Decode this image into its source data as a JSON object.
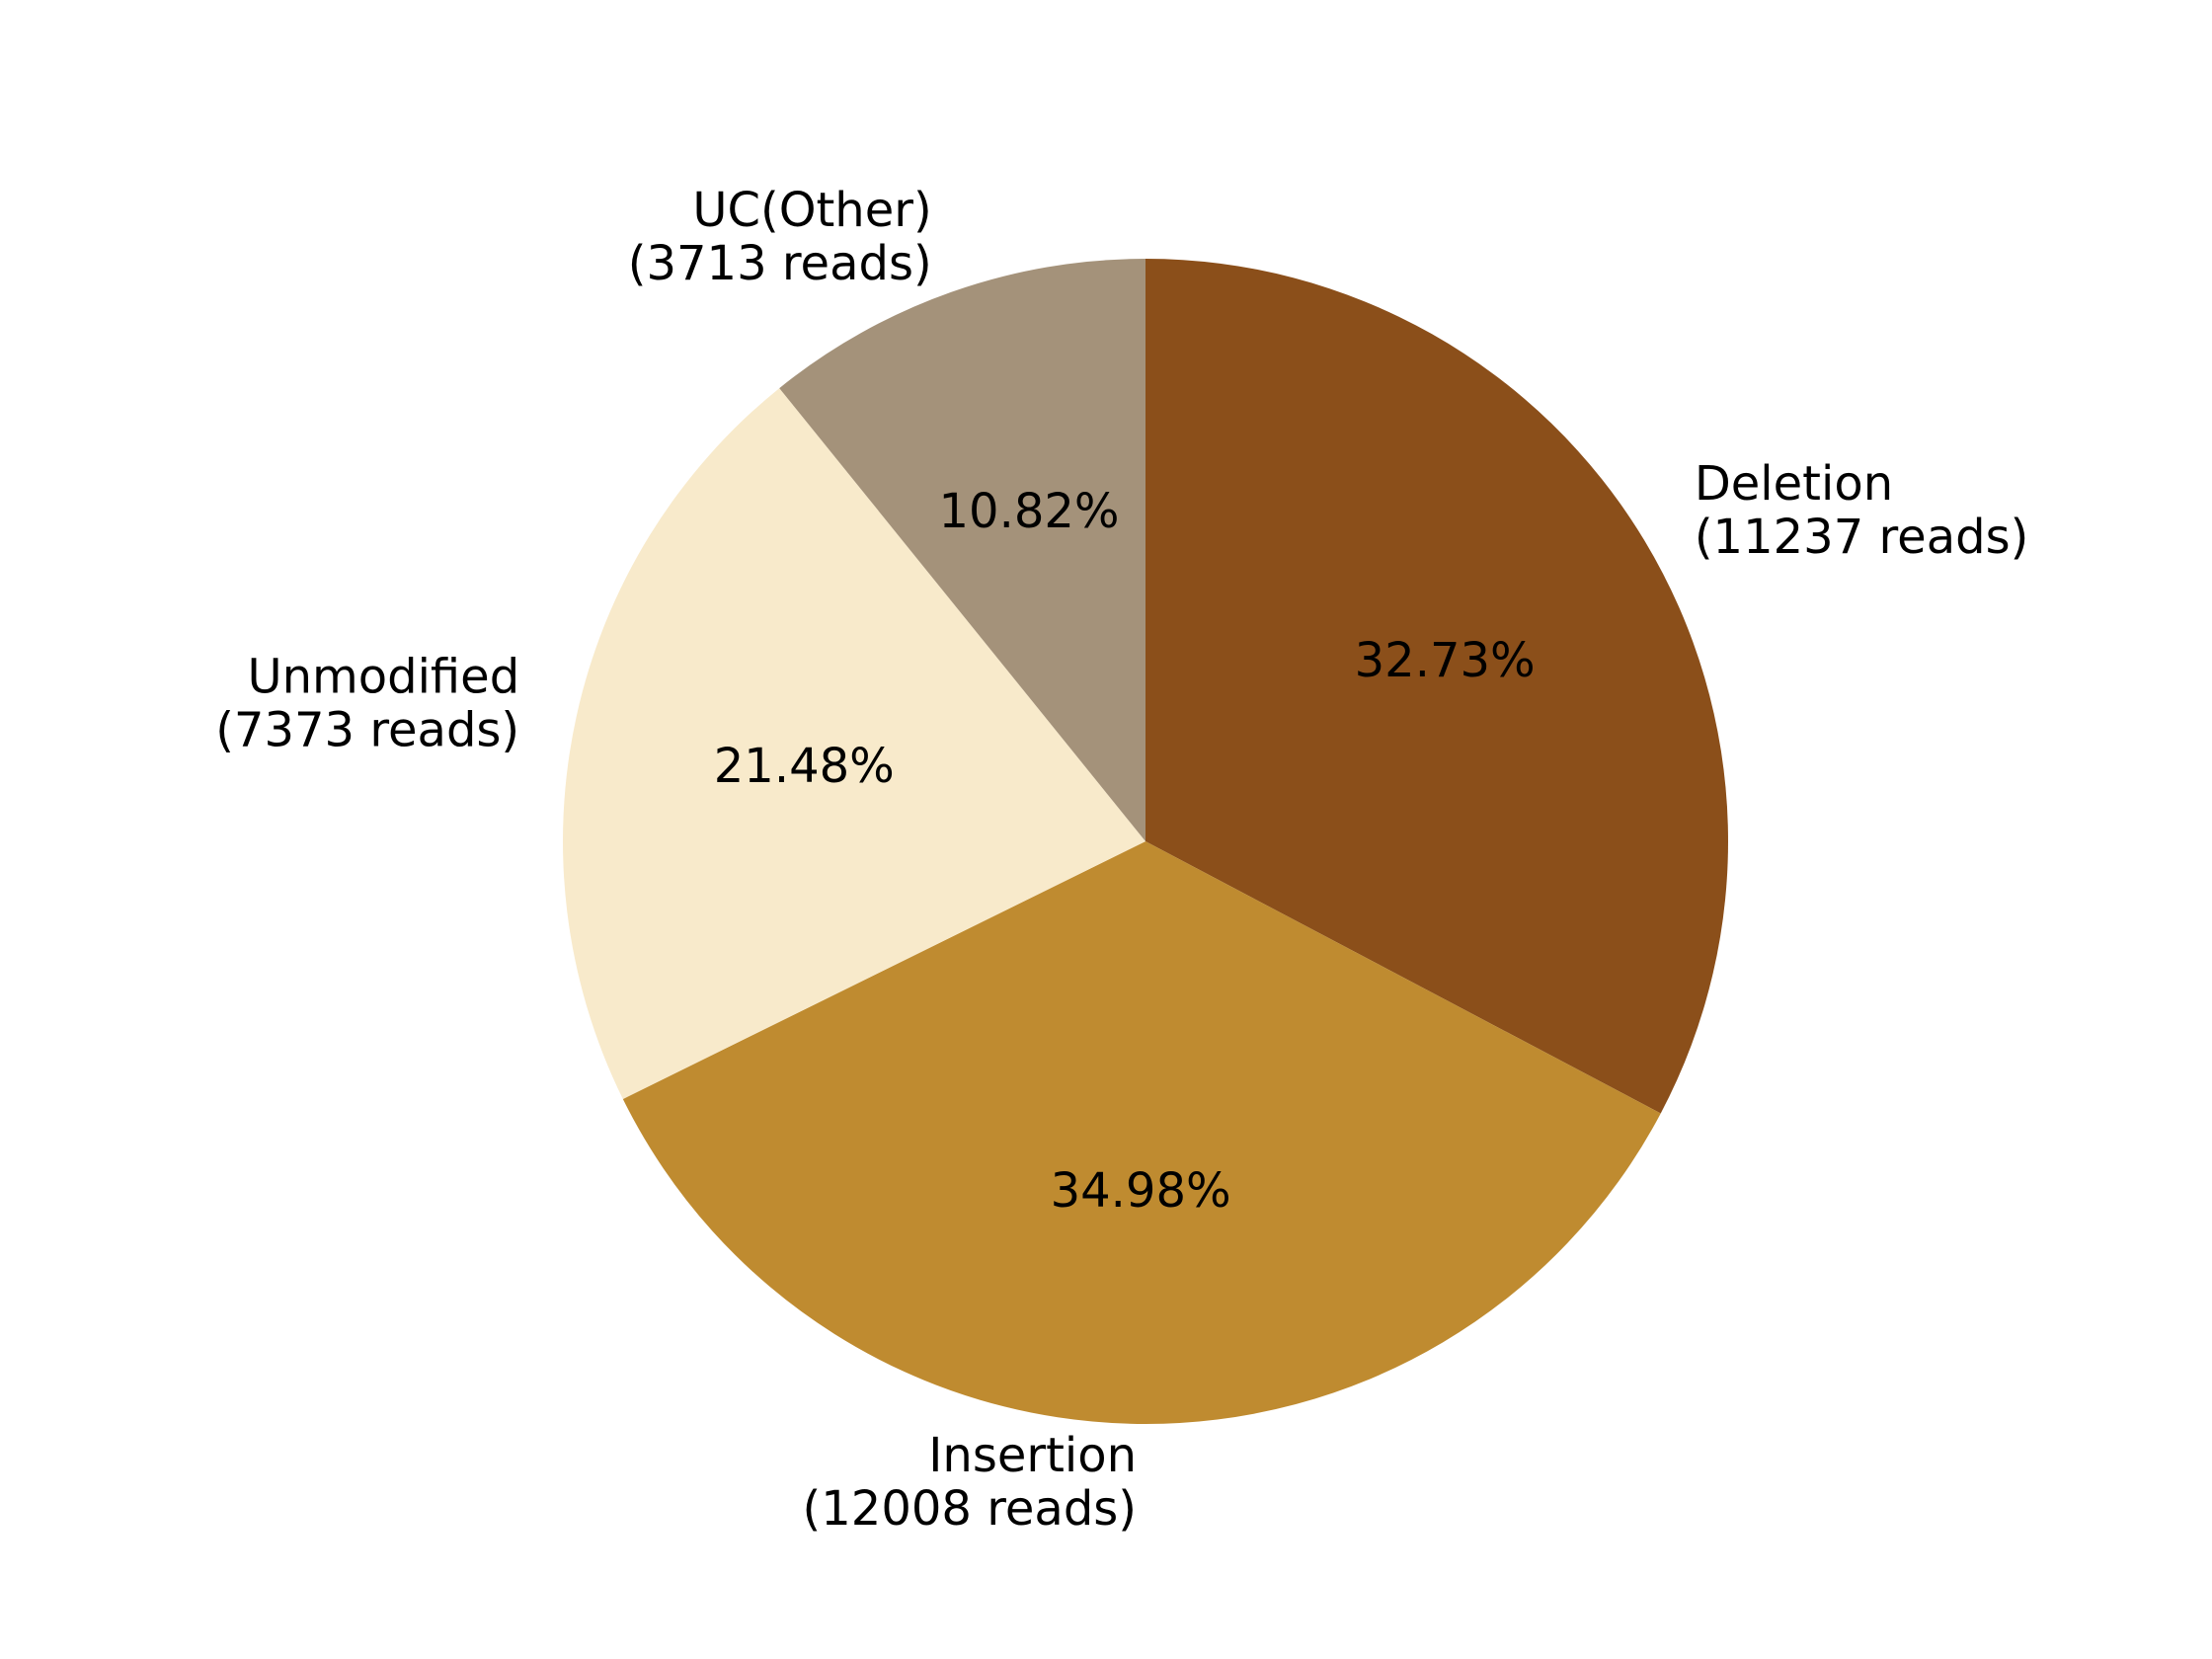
{
  "chart_data": {
    "type": "pie",
    "title": "",
    "start_angle_deg": 90,
    "direction": "clockwise",
    "slices": [
      {
        "name": "Deletion",
        "reads_text": "(11237 reads)",
        "value": 11237,
        "percent_text": "32.73%",
        "color": "#8B4F1A"
      },
      {
        "name": "Insertion",
        "reads_text": "(12008 reads)",
        "value": 12008,
        "percent_text": "34.98%",
        "color": "#BF8B30"
      },
      {
        "name": "Unmodified",
        "reads_text": "(7373 reads)",
        "value": 7373,
        "percent_text": "21.48%",
        "color": "#F8EACB"
      },
      {
        "name": "UC(Other)",
        "reads_text": "(3713 reads)",
        "value": 3713,
        "percent_text": "10.82%",
        "color": "#A4927A"
      }
    ]
  }
}
